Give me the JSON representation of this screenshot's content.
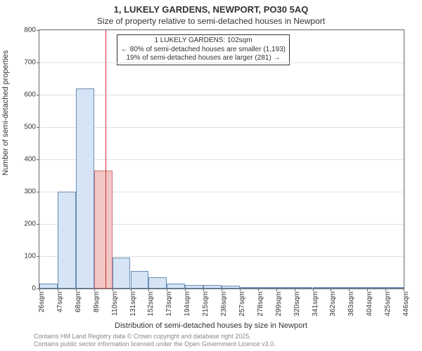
{
  "title": "1, LUKELY GARDENS, NEWPORT, PO30 5AQ",
  "subtitle": "Size of property relative to semi-detached houses in Newport",
  "yaxis_label": "Number of semi-detached properties",
  "xaxis_label": "Distribution of semi-detached houses by size in Newport",
  "attribution_line1": "Contains HM Land Registry data © Crown copyright and database right 2025.",
  "attribution_line2": "Contains public sector information licensed under the Open Government Licence v3.0.",
  "chart": {
    "type": "histogram",
    "ylim": [
      0,
      800
    ],
    "ytick_step": 100,
    "xticks": [
      26,
      47,
      68,
      89,
      110,
      131,
      152,
      173,
      194,
      215,
      236,
      257,
      278,
      299,
      320,
      341,
      362,
      383,
      404,
      425,
      446
    ],
    "xtick_suffix": "sqm",
    "bar_values": [
      15,
      300,
      620,
      365,
      95,
      55,
      35,
      15,
      10,
      10,
      8,
      5,
      3,
      3,
      2,
      2,
      2,
      2,
      2,
      2
    ],
    "bar_fill": "#d6e4f5",
    "bar_border": "#6b8db5",
    "highlight_index": 3,
    "highlight_fill": "#f3c6c6",
    "highlight_border": "#cc7777",
    "marker_value": 102,
    "marker_color": "#cc3333",
    "background_color": "#ffffff",
    "grid_color": "#e0e0e0",
    "axis_color": "#666666",
    "text_color": "#333333"
  },
  "callout": {
    "line1": "1 LUKELY GARDENS: 102sqm",
    "line2": "← 80% of semi-detached houses are smaller (1,193)",
    "line3": "19% of semi-detached houses are larger (281) →"
  }
}
